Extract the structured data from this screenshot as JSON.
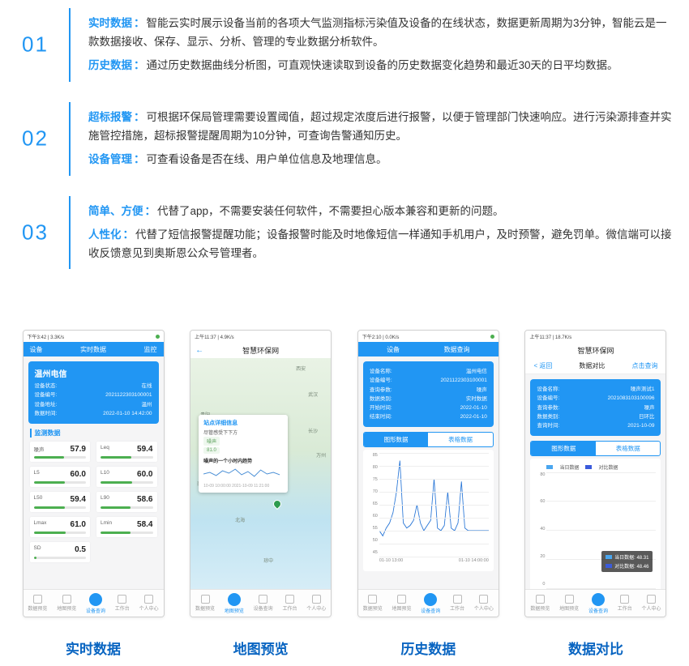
{
  "features": [
    {
      "num": "01",
      "lines": [
        {
          "key": "实时数据",
          "text": "智能云实时展示设备当前的各项大气监测指标污染值及设备的在线状态，数据更新周期为3分钟，智能云是一款数据接收、保存、显示、分析、管理的专业数据分析软件。"
        },
        {
          "key": "历史数据",
          "text": "通过历史数据曲线分析图，可直观快速读取到设备的历史数据变化趋势和最近30天的日平均数据。"
        }
      ]
    },
    {
      "num": "02",
      "lines": [
        {
          "key": "超标报警",
          "text": "可根据环保局管理需要设置阈值，超过规定浓度后进行报警，以便于管理部门快速响应。进行污染源排查并实施管控措施，超标报警提醒周期为10分钟，可查询告警通知历史。"
        },
        {
          "key": "设备管理",
          "text": "可查看设备是否在线、用户单位信息及地理信息。"
        }
      ]
    },
    {
      "num": "03",
      "lines": [
        {
          "key": "简单、方便",
          "text": "代替了app，不需要安装任何软件，不需要担心版本兼容和更新的问题。"
        },
        {
          "key": "人性化",
          "text": "代替了短信报警提醒功能；设备报警时能及时地像短信一样通知手机用户，及时预警，避免罚单。微信端可以接收反馈意见到奥斯恩公众号管理者。"
        }
      ]
    }
  ],
  "nav_labels": [
    "数据预览",
    "地图预览",
    "设备查询",
    "工作台",
    "个人中心"
  ],
  "phone1": {
    "caption": "实时数据",
    "status": "下午3:42 | 3.3K/s",
    "top_tabs": [
      "设备",
      "实时数据",
      "监控"
    ],
    "card": {
      "title": "温州电信",
      "rows": [
        {
          "l": "设备状态:",
          "r": "在线"
        },
        {
          "l": "设备编号:",
          "r": "2021122303100001"
        },
        {
          "l": "设备地址:",
          "r": "温州"
        },
        {
          "l": "数据时间:",
          "r": "2022-01-10 14:42:00"
        }
      ]
    },
    "section": "监测数据",
    "metrics": [
      {
        "label": "噪声",
        "val": "57.9",
        "pct": 58
      },
      {
        "label": "Leq",
        "val": "59.4",
        "pct": 59
      },
      {
        "label": "L5",
        "val": "60.0",
        "pct": 60
      },
      {
        "label": "L10",
        "val": "60.0",
        "pct": 60
      },
      {
        "label": "L50",
        "val": "59.4",
        "pct": 59
      },
      {
        "label": "L90",
        "val": "58.6",
        "pct": 58
      },
      {
        "label": "Lmax",
        "val": "61.0",
        "pct": 61
      },
      {
        "label": "Lmin",
        "val": "58.4",
        "pct": 58
      },
      {
        "label": "SD",
        "val": "0.5",
        "pct": 5
      }
    ]
  },
  "phone2": {
    "caption": "地图预览",
    "status": "上午11:37 | 4.9K/s",
    "header": "智慧环保网",
    "popup": {
      "title": "站点详细信息",
      "lines": [
        "尽管感受下下方",
        "噪声",
        "81.0"
      ],
      "section": "噪声的一个小时内趋势",
      "time_range": "10-09 10:00:00   2021-10-09 11:21:00"
    },
    "map_labels": [
      "贵阳",
      "南宁",
      "贵阳",
      "琼中",
      "西安",
      "武汉",
      "长沙",
      "万州",
      "北海"
    ]
  },
  "phone3": {
    "caption": "历史数据",
    "status": "下午2:10 | 0.0K/s",
    "top_tabs": [
      "设备",
      "数据查询"
    ],
    "card_rows": [
      {
        "l": "设备名称:",
        "r": "温州电信"
      },
      {
        "l": "设备编号:",
        "r": "2021122303100001"
      },
      {
        "l": "查询参数:",
        "r": "噪声"
      },
      {
        "l": "数据类别:",
        "r": "实时数据"
      },
      {
        "l": "开始时间:",
        "r": "2022-01-10"
      },
      {
        "l": "结束时间:",
        "r": "2022-01-10"
      }
    ],
    "tabs": [
      "图形数据",
      "表格数据"
    ],
    "chart": {
      "y_ticks": [
        "85",
        "80",
        "75",
        "70",
        "65",
        "60",
        "55",
        "50",
        "45"
      ],
      "x_ticks": [
        "01-10 13:00",
        "01-10 14:00:00"
      ],
      "points": [
        55,
        53,
        56,
        58,
        62,
        70,
        82,
        58,
        56,
        57,
        59,
        65,
        58,
        55,
        57,
        59,
        75,
        56,
        55,
        57,
        70,
        56,
        55,
        58,
        74,
        56,
        55,
        55,
        55,
        55,
        55,
        55,
        55
      ],
      "y_min": 45,
      "y_max": 85,
      "color": "#2574d6"
    }
  },
  "phone4": {
    "caption": "数据对比",
    "status": "上午11:37 | 18.7K/s",
    "header": "智慧环保网",
    "three_tabs": [
      "< 返回",
      "数据对比",
      "点击查询"
    ],
    "card_rows": [
      {
        "l": "设备名称:",
        "r": "噪声测试1"
      },
      {
        "l": "设备编号:",
        "r": "2021083103100096"
      },
      {
        "l": "查询参数:",
        "r": "噪声"
      },
      {
        "l": "数据类别:",
        "r": "日环比"
      },
      {
        "l": "查询时间:",
        "r": "2021-10-09"
      }
    ],
    "tabs": [
      "图形数据",
      "表格数据"
    ],
    "legend": [
      "当日数据",
      "对比数据"
    ],
    "tooltip": [
      "当日数据: 48.31",
      "对比数据: 48.46"
    ],
    "chart": {
      "y_ticks": [
        "80",
        "60",
        "40",
        "20",
        "0"
      ],
      "x_ticks": [
        "0时",
        "3时",
        "6时",
        "9时",
        "12时",
        "15时",
        "18时",
        "21时",
        "23时"
      ],
      "bars_a": [
        45,
        46,
        44,
        45,
        44,
        45,
        43,
        44,
        45,
        46,
        65,
        70,
        68,
        60,
        55,
        50,
        48,
        48,
        48,
        48,
        48,
        48,
        48,
        55
      ],
      "bars_b": [
        46,
        47,
        45,
        46,
        45,
        46,
        44,
        45,
        46,
        47,
        66,
        71,
        69,
        61,
        56,
        51,
        49,
        49,
        49,
        49,
        49,
        49,
        49,
        56
      ],
      "y_max": 80,
      "color_a": "#4aa6ef",
      "color_b": "#3b5bdb"
    }
  }
}
